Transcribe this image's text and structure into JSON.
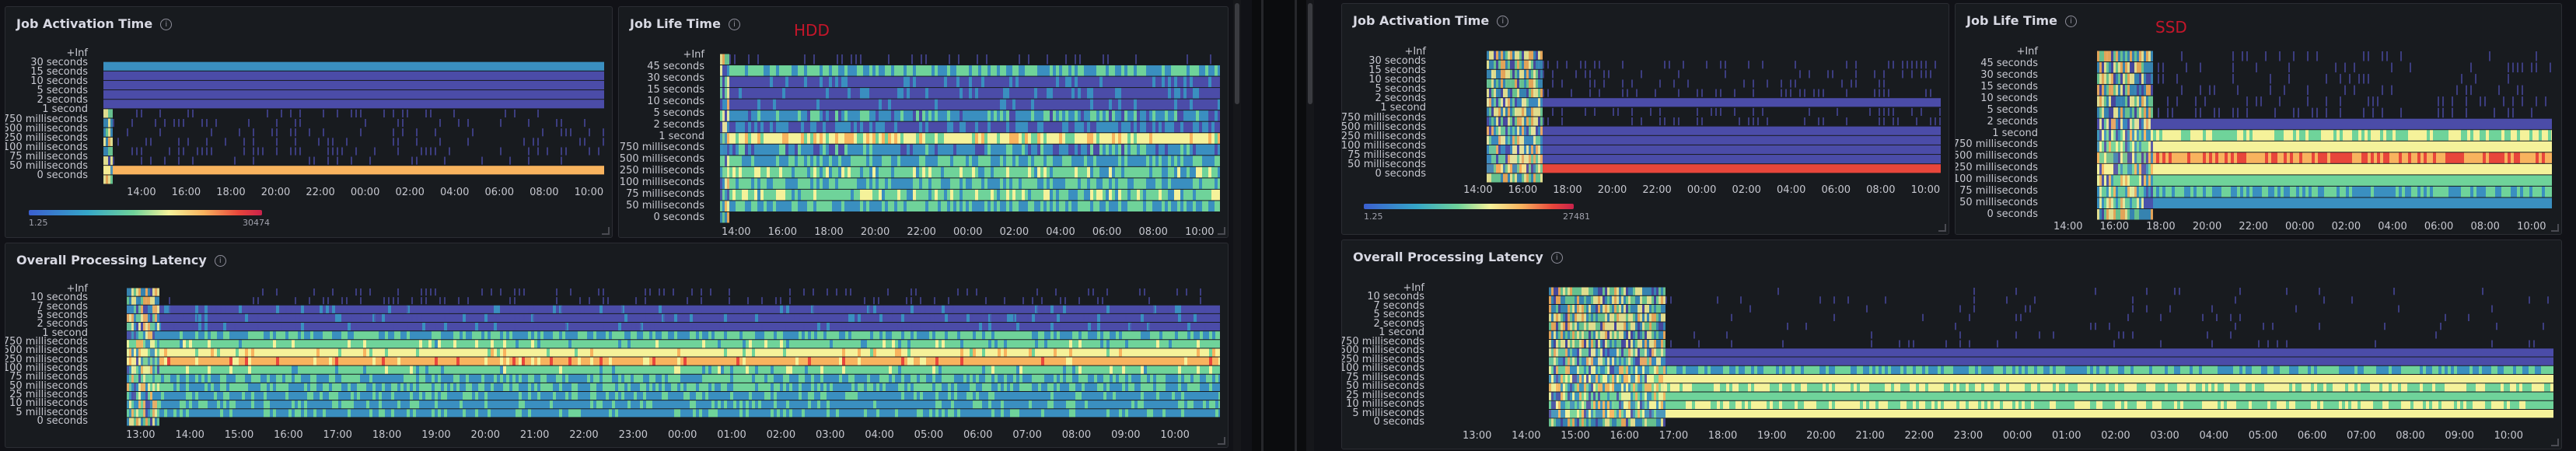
{
  "dashboards": [
    {
      "id": "left",
      "panels": {
        "activation": {
          "title": "Job Activation Time",
          "y_labels": [
            "+Inf",
            "30 seconds",
            "15 seconds",
            "10 seconds",
            "5 seconds",
            "2 seconds",
            "1 second",
            "750 milliseconds",
            "500 milliseconds",
            "250 milliseconds",
            "100 milliseconds",
            "75 milliseconds",
            "50 milliseconds",
            "0 seconds"
          ],
          "x_labels": [
            "14:00",
            "16:00",
            "18:00",
            "20:00",
            "22:00",
            "00:00",
            "02:00",
            "04:00",
            "06:00",
            "08:00",
            "10:00"
          ],
          "legend_min": "1.25",
          "legend_max": "30474"
        },
        "lifetime": {
          "title": "Job Life Time",
          "annotation": "HDD",
          "y_labels": [
            "+Inf",
            "45 seconds",
            "30 seconds",
            "15 seconds",
            "10 seconds",
            "5 seconds",
            "2 seconds",
            "1 second",
            "750 milliseconds",
            "500 milliseconds",
            "250 milliseconds",
            "100 milliseconds",
            "75 milliseconds",
            "50 milliseconds",
            "0 seconds"
          ],
          "x_labels": [
            "14:00",
            "16:00",
            "18:00",
            "20:00",
            "22:00",
            "00:00",
            "02:00",
            "04:00",
            "06:00",
            "08:00",
            "10:00"
          ]
        },
        "latency": {
          "title": "Overall Processing Latency",
          "y_labels": [
            "+Inf",
            "10 seconds",
            "7 seconds",
            "5 seconds",
            "2 seconds",
            "1 second",
            "750 milliseconds",
            "500 milliseconds",
            "250 milliseconds",
            "100 milliseconds",
            "75 milliseconds",
            "50 milliseconds",
            "25 milliseconds",
            "10 milliseconds",
            "5 milliseconds",
            "0 seconds"
          ],
          "x_labels": [
            "13:00",
            "14:00",
            "15:00",
            "16:00",
            "17:00",
            "18:00",
            "19:00",
            "20:00",
            "21:00",
            "22:00",
            "23:00",
            "00:00",
            "01:00",
            "02:00",
            "03:00",
            "04:00",
            "05:00",
            "06:00",
            "07:00",
            "08:00",
            "09:00",
            "10:00"
          ]
        }
      }
    },
    {
      "id": "right",
      "panels": {
        "activation": {
          "title": "Job Activation Time",
          "y_labels": [
            "+Inf",
            "30 seconds",
            "15 seconds",
            "10 seconds",
            "5 seconds",
            "2 seconds",
            "1 second",
            "750 milliseconds",
            "500 milliseconds",
            "250 milliseconds",
            "100 milliseconds",
            "75 milliseconds",
            "50 milliseconds",
            "0 seconds"
          ],
          "x_labels": [
            "14:00",
            "16:00",
            "18:00",
            "20:00",
            "22:00",
            "00:00",
            "02:00",
            "04:00",
            "06:00",
            "08:00",
            "10:00"
          ],
          "legend_min": "1.25",
          "legend_max": "27481"
        },
        "lifetime": {
          "title": "Job Life Time",
          "annotation": "SSD",
          "y_labels": [
            "+Inf",
            "45 seconds",
            "30 seconds",
            "15 seconds",
            "10 seconds",
            "5 seconds",
            "2 seconds",
            "1 second",
            "750 milliseconds",
            "500 milliseconds",
            "250 milliseconds",
            "100 milliseconds",
            "75 milliseconds",
            "50 milliseconds",
            "0 seconds"
          ],
          "x_labels": [
            "14:00",
            "16:00",
            "18:00",
            "20:00",
            "22:00",
            "00:00",
            "02:00",
            "04:00",
            "06:00",
            "08:00",
            "10:00"
          ]
        },
        "latency": {
          "title": "Overall Processing Latency",
          "y_labels": [
            "+Inf",
            "10 seconds",
            "7 seconds",
            "5 seconds",
            "2 seconds",
            "1 second",
            "750 milliseconds",
            "500 milliseconds",
            "250 milliseconds",
            "100 milliseconds",
            "75 milliseconds",
            "50 milliseconds",
            "25 milliseconds",
            "10 milliseconds",
            "5 milliseconds",
            "0 seconds"
          ],
          "x_labels": [
            "13:00",
            "14:00",
            "15:00",
            "16:00",
            "17:00",
            "18:00",
            "19:00",
            "20:00",
            "21:00",
            "22:00",
            "23:00",
            "00:00",
            "01:00",
            "02:00",
            "03:00",
            "04:00",
            "05:00",
            "06:00",
            "07:00",
            "08:00",
            "09:00",
            "10:00"
          ]
        }
      }
    }
  ],
  "palette": {
    "background": "#111217",
    "panel": "#181b1f",
    "cold": "#4b4ca8",
    "cool": "#3a8fc0",
    "mid": "#6fd39a",
    "warm": "#f5f29a",
    "hot": "#f8b35e",
    "peak": "#e8463b"
  }
}
